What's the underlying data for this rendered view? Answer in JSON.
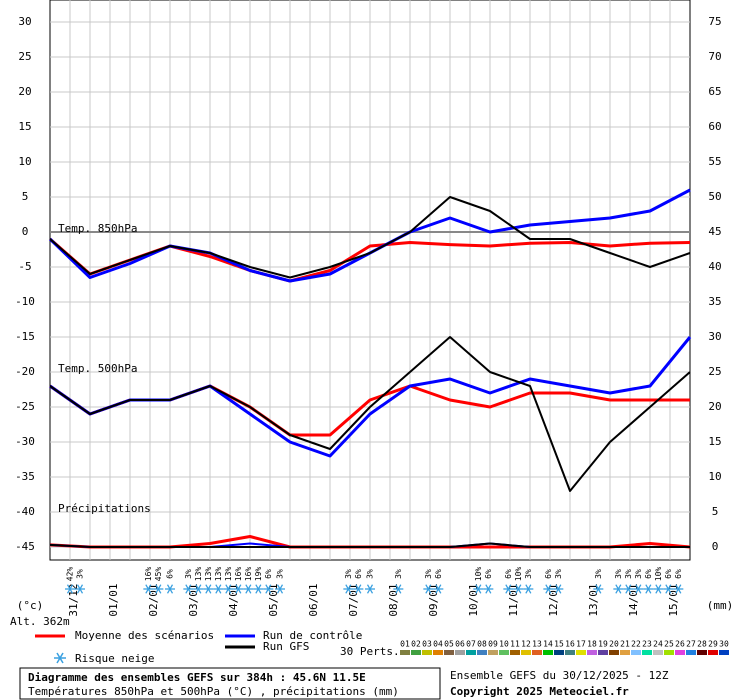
{
  "chart_data": {
    "type": "line",
    "title": "Diagramme des ensembles GEFS sur 384h : 45.6N 11.5E",
    "subtitle": "Températures 850hPa et 500hPa (°C) , précipitations (mm)",
    "run_info": "Ensemble GEFS du 30/12/2025 - 12Z",
    "copyright": "Copyright 2025 Meteociel.fr",
    "y_label": "(°c)",
    "y2_label": "(mm)",
    "altitude": "Alt. 362m",
    "panel_labels": [
      {
        "text": "Temp. 850hPa",
        "y": 0
      },
      {
        "text": "Temp. 500hPa",
        "y": -20
      },
      {
        "text": "Précipitations",
        "y": -40
      }
    ],
    "x": [
      0,
      24,
      48,
      72,
      96,
      120,
      144,
      168,
      192,
      216,
      240,
      264,
      288,
      312,
      336,
      360,
      384
    ],
    "xlim": [
      0,
      384
    ],
    "xticks": [
      {
        "value": 12,
        "label": "31/12"
      },
      {
        "value": 36,
        "label": "01/01"
      },
      {
        "value": 60,
        "label": "02/01"
      },
      {
        "value": 84,
        "label": "03/01"
      },
      {
        "value": 108,
        "label": "04/01"
      },
      {
        "value": 132,
        "label": "05/01"
      },
      {
        "value": 156,
        "label": "06/01"
      },
      {
        "value": 180,
        "label": "07/01"
      },
      {
        "value": 204,
        "label": "08/01"
      },
      {
        "value": 228,
        "label": "09/01"
      },
      {
        "value": 252,
        "label": "10/01"
      },
      {
        "value": 276,
        "label": "11/01"
      },
      {
        "value": 300,
        "label": "12/01"
      },
      {
        "value": 324,
        "label": "13/01"
      },
      {
        "value": 348,
        "label": "14/01"
      },
      {
        "value": 372,
        "label": "15/01"
      }
    ],
    "ylim": [
      -45,
      30
    ],
    "yticks": [
      -45,
      -40,
      -35,
      -30,
      -25,
      -20,
      -15,
      -10,
      -5,
      0,
      5,
      10,
      15,
      20,
      25,
      30
    ],
    "y2lim": [
      0,
      75
    ],
    "y2ticks": [
      0,
      5,
      10,
      15,
      20,
      25,
      30,
      35,
      40,
      45,
      50,
      55,
      60,
      65,
      70,
      75
    ],
    "series": [
      {
        "name": "Moyenne des scénarios",
        "color": "#ff0000",
        "width": 3,
        "values": [
          -1,
          -6,
          -4,
          -2,
          -3.5,
          -5.5,
          -7,
          -5.5,
          -2,
          -1.5,
          -1.8,
          -2,
          -1.6,
          -1.5,
          -2,
          -1.6,
          -1.5
        ]
      },
      {
        "name": "Run de contrôle",
        "color": "#0000ff",
        "width": 3,
        "values": [
          -1,
          -6.5,
          -4.5,
          -2,
          -3,
          -5.5,
          -7,
          -6,
          -3,
          0,
          2,
          0,
          1,
          1.5,
          2,
          3,
          6
        ]
      },
      {
        "name": "Run GFS",
        "color": "#000000",
        "width": 2,
        "values": [
          -1,
          -6,
          -4,
          -2,
          -3,
          -5,
          -6.5,
          -5,
          -3,
          0,
          5,
          3,
          -1,
          -1,
          -3,
          -5,
          -3
        ]
      },
      {
        "color": "#ff0000",
        "width": 3,
        "values": [
          -22,
          -26,
          -24,
          -24,
          -22,
          -25,
          -29,
          -29,
          -24,
          -22,
          -24,
          -25,
          -23,
          -23,
          -24,
          -24,
          -24
        ]
      },
      {
        "color": "#0000ff",
        "width": 3,
        "values": [
          -22,
          -26,
          -24,
          -24,
          -22,
          -26,
          -30,
          -32,
          -26,
          -22,
          -21,
          -23,
          -21,
          -22,
          -23,
          -22,
          -15
        ]
      },
      {
        "color": "#000000",
        "width": 2,
        "values": [
          -22,
          -26,
          -24,
          -24,
          -22,
          -25,
          -29,
          -31,
          -25,
          -20,
          -15,
          -20,
          -22,
          -37,
          -30,
          -25,
          -20
        ]
      },
      {
        "color": "#ff0000",
        "width": 3,
        "axis": "y2",
        "values": [
          0.3,
          0,
          0,
          0,
          0.5,
          1.5,
          0,
          0,
          0,
          0,
          0,
          0,
          0,
          0,
          0,
          0.5,
          0
        ]
      },
      {
        "color": "#0000ff",
        "width": 2,
        "axis": "y2",
        "values": [
          0.3,
          0,
          0,
          0,
          0,
          0.5,
          0,
          0,
          0,
          0,
          0,
          0.5,
          0,
          0,
          0,
          0,
          0
        ]
      },
      {
        "color": "#000000",
        "width": 2,
        "axis": "y2",
        "values": [
          0.3,
          0,
          0,
          0,
          0,
          0,
          0,
          0,
          0,
          0,
          0,
          0.5,
          0,
          0,
          0,
          0,
          0
        ]
      }
    ],
    "snow_legend": "Risque neige",
    "snow_risk": [
      {
        "x": 12,
        "label": "42%"
      },
      {
        "x": 18,
        "label": "3%"
      },
      {
        "x": 59,
        "label": "16%"
      },
      {
        "x": 65,
        "label": "45%"
      },
      {
        "x": 72,
        "label": "6%"
      },
      {
        "x": 83,
        "label": "3%"
      },
      {
        "x": 89,
        "label": "13%"
      },
      {
        "x": 95,
        "label": "13%"
      },
      {
        "x": 101,
        "label": "13%"
      },
      {
        "x": 107,
        "label": "13%"
      },
      {
        "x": 113,
        "label": "16%"
      },
      {
        "x": 119,
        "label": "16%"
      },
      {
        "x": 125,
        "label": "19%"
      },
      {
        "x": 131,
        "label": "6%"
      },
      {
        "x": 138,
        "label": "3%"
      },
      {
        "x": 179,
        "label": "3%"
      },
      {
        "x": 185,
        "label": "6%"
      },
      {
        "x": 192,
        "label": "3%"
      },
      {
        "x": 209,
        "label": "3%"
      },
      {
        "x": 227,
        "label": "3%"
      },
      {
        "x": 233,
        "label": "6%"
      },
      {
        "x": 257,
        "label": "10%"
      },
      {
        "x": 263,
        "label": "6%"
      },
      {
        "x": 275,
        "label": "6%"
      },
      {
        "x": 281,
        "label": "10%"
      },
      {
        "x": 287,
        "label": "3%"
      },
      {
        "x": 299,
        "label": "6%"
      },
      {
        "x": 305,
        "label": "3%"
      },
      {
        "x": 329,
        "label": "3%"
      },
      {
        "x": 341,
        "label": "3%"
      },
      {
        "x": 347,
        "label": "3%"
      },
      {
        "x": 353,
        "label": "3%"
      },
      {
        "x": 359,
        "label": "6%"
      },
      {
        "x": 365,
        "label": "10%"
      },
      {
        "x": 371,
        "label": "6%"
      },
      {
        "x": 377,
        "label": "6%"
      }
    ],
    "perts_label": "30 Perts.",
    "perts": [
      {
        "name": "01",
        "color": "#808040"
      },
      {
        "name": "02",
        "color": "#40a040"
      },
      {
        "name": "03",
        "color": "#c0c000"
      },
      {
        "name": "04",
        "color": "#e08000"
      },
      {
        "name": "05",
        "color": "#806040"
      },
      {
        "name": "06",
        "color": "#a0a0a0"
      },
      {
        "name": "07",
        "color": "#00a0a0"
      },
      {
        "name": "08",
        "color": "#4080c0"
      },
      {
        "name": "09",
        "color": "#c0a060"
      },
      {
        "name": "10",
        "color": "#60c060"
      },
      {
        "name": "11",
        "color": "#a06000"
      },
      {
        "name": "12",
        "color": "#e0c000"
      },
      {
        "name": "13",
        "color": "#e06020"
      },
      {
        "name": "14",
        "color": "#00c000"
      },
      {
        "name": "15",
        "color": "#004080"
      },
      {
        "name": "16",
        "color": "#408080"
      },
      {
        "name": "17",
        "color": "#e0e000"
      },
      {
        "name": "18",
        "color": "#c060e0"
      },
      {
        "name": "19",
        "color": "#6040a0"
      },
      {
        "name": "20",
        "color": "#804000"
      },
      {
        "name": "21",
        "color": "#e0a040"
      },
      {
        "name": "22",
        "color": "#80c0ff"
      },
      {
        "name": "23",
        "color": "#00e0a0"
      },
      {
        "name": "24",
        "color": "#c0c0c0"
      },
      {
        "name": "25",
        "color": "#a0e000"
      },
      {
        "name": "26",
        "color": "#e040e0"
      },
      {
        "name": "27",
        "color": "#2080e0"
      },
      {
        "name": "28",
        "color": "#600000"
      },
      {
        "name": "29",
        "color": "#e00000"
      },
      {
        "name": "30",
        "color": "#0040c0"
      }
    ]
  }
}
